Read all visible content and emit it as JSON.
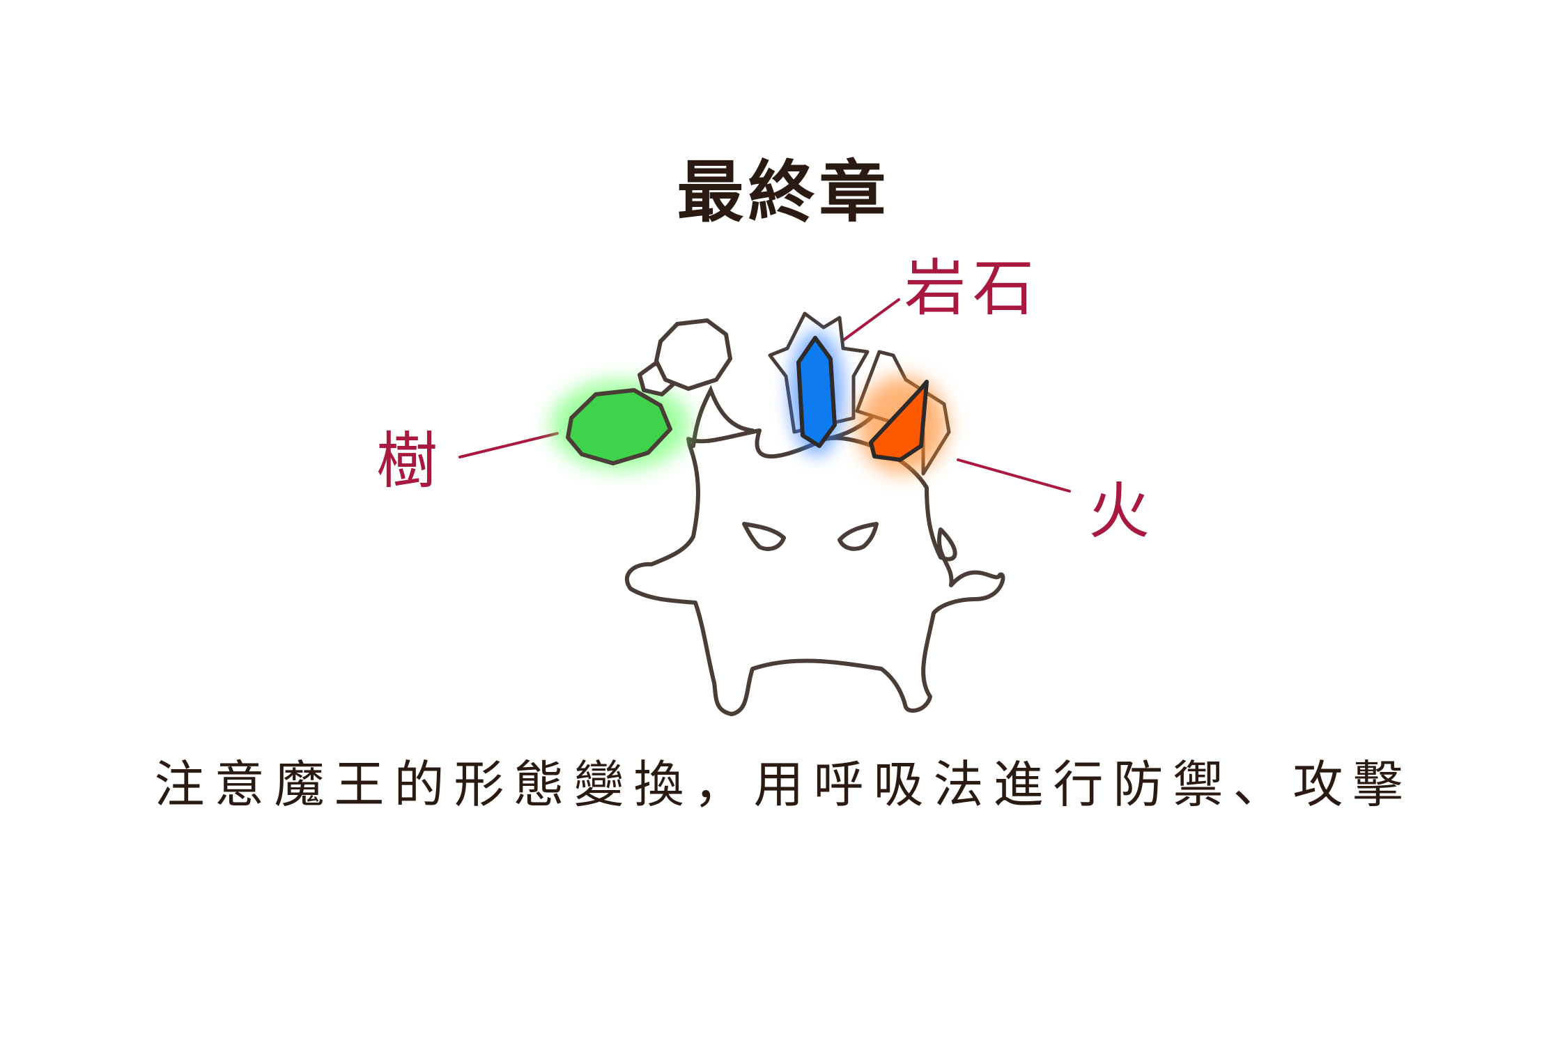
{
  "title": "最終章",
  "instruction": "注意魔王的形態變換，用呼吸法進行防禦、攻擊",
  "callouts": {
    "rock": "岩石",
    "tree": "樹",
    "fire": "火"
  },
  "colors": {
    "title": "#2a1a12",
    "callout": "#a8183f",
    "outline": "#4a3c36",
    "tree": "#3ed34a",
    "rock": "#0f7bf0",
    "fire": "#ff5a00"
  },
  "icons": {
    "boss": "demon-king-icon",
    "tree": "tree-gem-icon",
    "rock": "rock-crystal-icon",
    "fire": "fire-gem-icon"
  }
}
